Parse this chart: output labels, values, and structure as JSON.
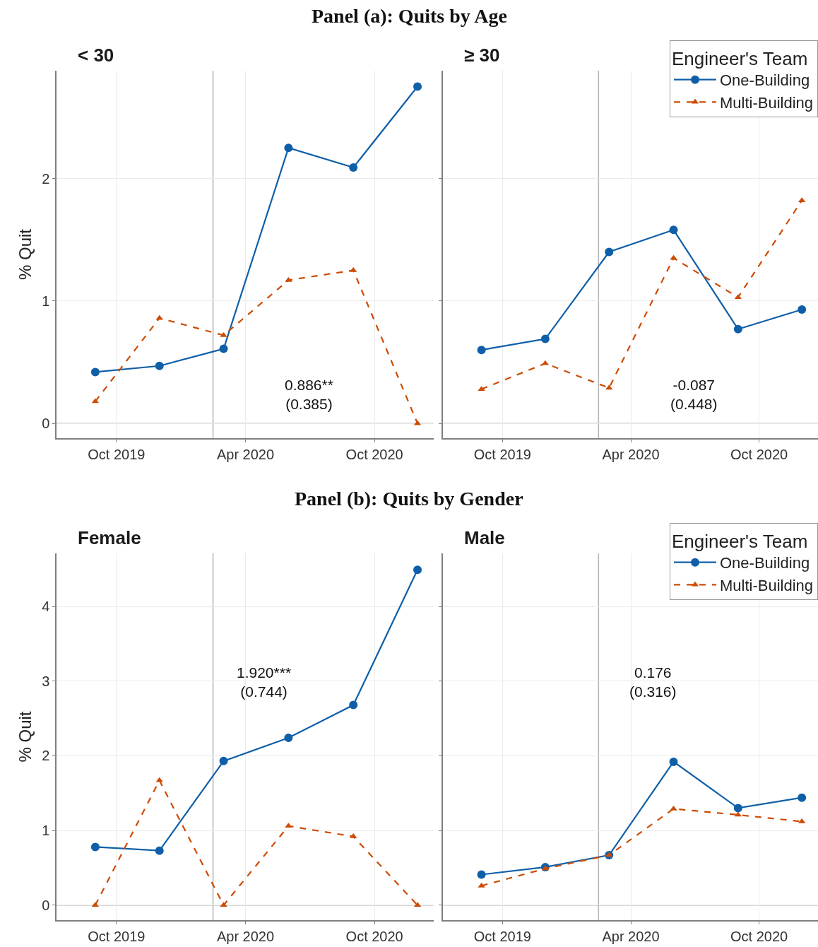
{
  "chart_data": [
    {
      "type": "line",
      "title": "Panel (a): Quits by Age",
      "subtitle": "< 30",
      "ylabel": "% Quit",
      "annotations": [
        "0.886**\n(0.385)"
      ],
      "x": [
        "2019-09-01",
        "2019-12-01",
        "2020-03-01",
        "2020-06-01",
        "2020-09-01",
        "2020-12-01"
      ],
      "series": [
        {
          "color": "#0f5fa8",
          "marker": "circle",
          "line_style": "solid",
          "values": [
            0.42,
            0.47,
            0.61,
            2.25,
            2.09,
            2.75
          ]
        },
        {
          "color": "#cc4c02",
          "marker": "triangle",
          "line_style": "dashed",
          "values": [
            0.18,
            0.86,
            0.72,
            1.17,
            1.25,
            0.0
          ]
        }
      ],
      "xlim": [
        "2019-07-08",
        "2020-12-24"
      ],
      "ylim": [
        -0.12,
        2.88
      ],
      "xticks": [
        {
          "value": "2019-10-01",
          "label": "Oct 2019"
        },
        {
          "value": "2020-04-01",
          "label": "Apr 2020"
        },
        {
          "value": "2020-10-01",
          "label": "Oct 2020"
        }
      ],
      "yticks": [
        0,
        1,
        2
      ],
      "grid": true,
      "legend": false,
      "ref_lines": [
        {
          "axis": "y",
          "value": 0,
          "color": "#b3b3b3"
        },
        {
          "axis": "x",
          "value": "2020-02-15",
          "color": "#b3b3b3"
        }
      ]
    },
    {
      "type": "line",
      "subtitle": "≥ 30",
      "legend_title": "Engineer's Team",
      "annotations": [
        "-0.087\n(0.448)"
      ],
      "x": [
        "2019-09-01",
        "2019-12-01",
        "2020-03-01",
        "2020-06-01",
        "2020-09-01",
        "2020-12-01"
      ],
      "series": [
        {
          "name": "One-Building",
          "color": "#0f5fa8",
          "marker": "circle",
          "line_style": "solid",
          "values": [
            0.6,
            0.69,
            1.4,
            1.58,
            0.77,
            0.93
          ]
        },
        {
          "name": "Multi-Building",
          "color": "#cc4c02",
          "marker": "triangle",
          "line_style": "dashed",
          "values": [
            0.28,
            0.49,
            0.29,
            1.35,
            1.03,
            1.82
          ]
        }
      ],
      "xlim": [
        "2019-07-08",
        "2020-12-24"
      ],
      "ylim": [
        -0.12,
        2.88
      ],
      "xticks": [
        {
          "value": "2019-10-01",
          "label": "Oct 2019"
        },
        {
          "value": "2020-04-01",
          "label": "Apr 2020"
        },
        {
          "value": "2020-10-01",
          "label": "Oct 2020"
        }
      ],
      "yticks": [
        0,
        1,
        2
      ],
      "tick_labels": "x",
      "grid": true,
      "legend": "top right",
      "ref_lines": [
        {
          "axis": "y",
          "value": 0,
          "color": "#b3b3b3"
        },
        {
          "axis": "x",
          "value": "2020-02-15",
          "color": "#b3b3b3"
        }
      ]
    },
    {
      "type": "line",
      "title": "Panel (b): Quits by Gender",
      "subtitle": "Female",
      "ylabel": "% Quit",
      "annotations": [
        "1.920***\n(0.744)"
      ],
      "x": [
        "2019-09-01",
        "2019-12-01",
        "2020-03-01",
        "2020-06-01",
        "2020-09-01",
        "2020-12-01"
      ],
      "series": [
        {
          "color": "#0f5fa8",
          "marker": "circle",
          "line_style": "solid",
          "values": [
            0.78,
            0.73,
            1.93,
            2.24,
            2.68,
            4.49
          ]
        },
        {
          "color": "#cc4c02",
          "marker": "triangle",
          "line_style": "dashed",
          "values": [
            0.0,
            1.67,
            0.0,
            1.06,
            0.92,
            0.0
          ]
        }
      ],
      "xlim": [
        "2019-07-08",
        "2020-12-24"
      ],
      "ylim": [
        -0.2,
        4.71
      ],
      "xticks": [
        {
          "value": "2019-10-01",
          "label": "Oct 2019"
        },
        {
          "value": "2020-04-01",
          "label": "Apr 2020"
        },
        {
          "value": "2020-10-01",
          "label": "Oct 2020"
        }
      ],
      "yticks": [
        0,
        1,
        2,
        3,
        4
      ],
      "grid": true,
      "legend": false,
      "ref_lines": [
        {
          "axis": "y",
          "value": 0,
          "color": "#b3b3b3"
        },
        {
          "axis": "x",
          "value": "2020-02-15",
          "color": "#b3b3b3"
        }
      ]
    },
    {
      "type": "line",
      "subtitle": "Male",
      "legend_title": "Engineer's Team",
      "annotations": [
        "0.176\n(0.316)"
      ],
      "x": [
        "2019-09-01",
        "2019-12-01",
        "2020-03-01",
        "2020-06-01",
        "2020-09-01",
        "2020-12-01"
      ],
      "series": [
        {
          "name": "One-Building",
          "color": "#0f5fa8",
          "marker": "circle",
          "line_style": "solid",
          "values": [
            0.41,
            0.51,
            0.67,
            1.92,
            1.3,
            1.44
          ]
        },
        {
          "name": "Multi-Building",
          "color": "#cc4c02",
          "marker": "triangle",
          "line_style": "dashed",
          "values": [
            0.26,
            0.49,
            0.67,
            1.29,
            1.21,
            1.12
          ]
        }
      ],
      "xlim": [
        "2019-07-08",
        "2020-12-24"
      ],
      "ylim": [
        -0.2,
        4.71
      ],
      "xticks": [
        {
          "value": "2019-10-01",
          "label": "Oct 2019"
        },
        {
          "value": "2020-04-01",
          "label": "Apr 2020"
        },
        {
          "value": "2020-10-01",
          "label": "Oct 2020"
        }
      ],
      "yticks": [
        0,
        1,
        2,
        3,
        4
      ],
      "tick_labels": "x",
      "grid": true,
      "legend": "top right",
      "ref_lines": [
        {
          "axis": "y",
          "value": 0,
          "color": "#b3b3b3"
        },
        {
          "axis": "x",
          "value": "2020-02-15",
          "color": "#b3b3b3"
        }
      ]
    }
  ]
}
